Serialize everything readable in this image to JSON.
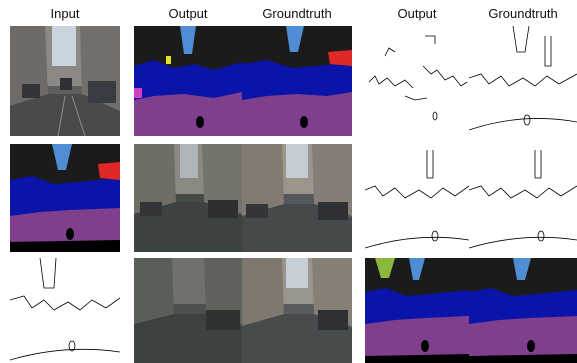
{
  "headers": {
    "input": "Input",
    "output_a": "Output",
    "groundtruth_a": "Groundtruth",
    "output_b": "Output",
    "groundtruth_b": "Groundtruth"
  },
  "colors": {
    "road": "#7f3f8c",
    "road_light": "#9a4a9e",
    "car": "#0a14a8",
    "sky": "#4f8ed4",
    "building": "#2a2a2a",
    "sign": "#e8e030",
    "vegetation": "#8ab83a",
    "person": "#e02828",
    "hood": "#000000",
    "edge_bg": "#ffffff",
    "edge_line": "#000000"
  }
}
